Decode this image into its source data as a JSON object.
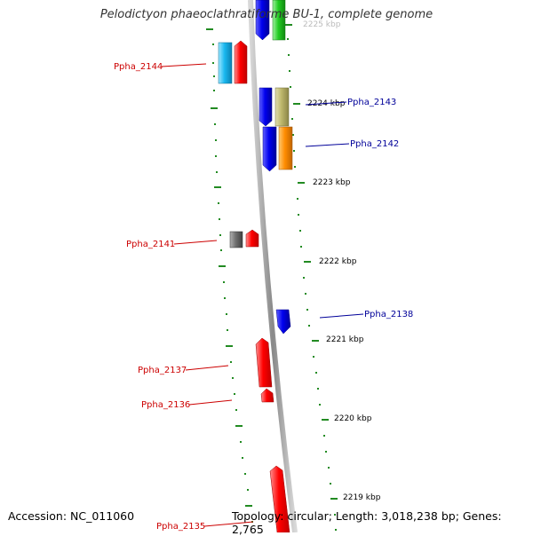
{
  "title": "Pelodictyon phaeoclathratiforme BU-1, complete genome",
  "accession": "Accession: NC_011060",
  "summary": "Topology: circular; Length: 3,018,238 bp; Genes: 2,765",
  "kbp_labels": [
    {
      "text": "2224 kbp"
    },
    {
      "text": "2223 kbp"
    },
    {
      "text": "2222 kbp"
    },
    {
      "text": "2221 kbp"
    },
    {
      "text": "2220 kbp"
    },
    {
      "text": "2219 kbp"
    },
    {
      "text": "2225 kbp"
    }
  ],
  "gene_labels": [
    {
      "text": "Ppha_2144",
      "color": "#cc0000"
    },
    {
      "text": "Ppha_2143",
      "color": "#000099"
    },
    {
      "text": "Ppha_2142",
      "color": "#000099"
    },
    {
      "text": "Ppha_2141",
      "color": "#cc0000"
    },
    {
      "text": "Ppha_2138",
      "color": "#000099"
    },
    {
      "text": "Ppha_2137",
      "color": "#cc0000"
    },
    {
      "text": "Ppha_2136",
      "color": "#cc0000"
    },
    {
      "text": "Ppha_2135",
      "color": "#cc0000"
    }
  ],
  "colors": {
    "forward_gene": "#ff0000",
    "reverse_gene": "#0000ee",
    "backbone": "#888888",
    "ticks": "#228b22"
  }
}
